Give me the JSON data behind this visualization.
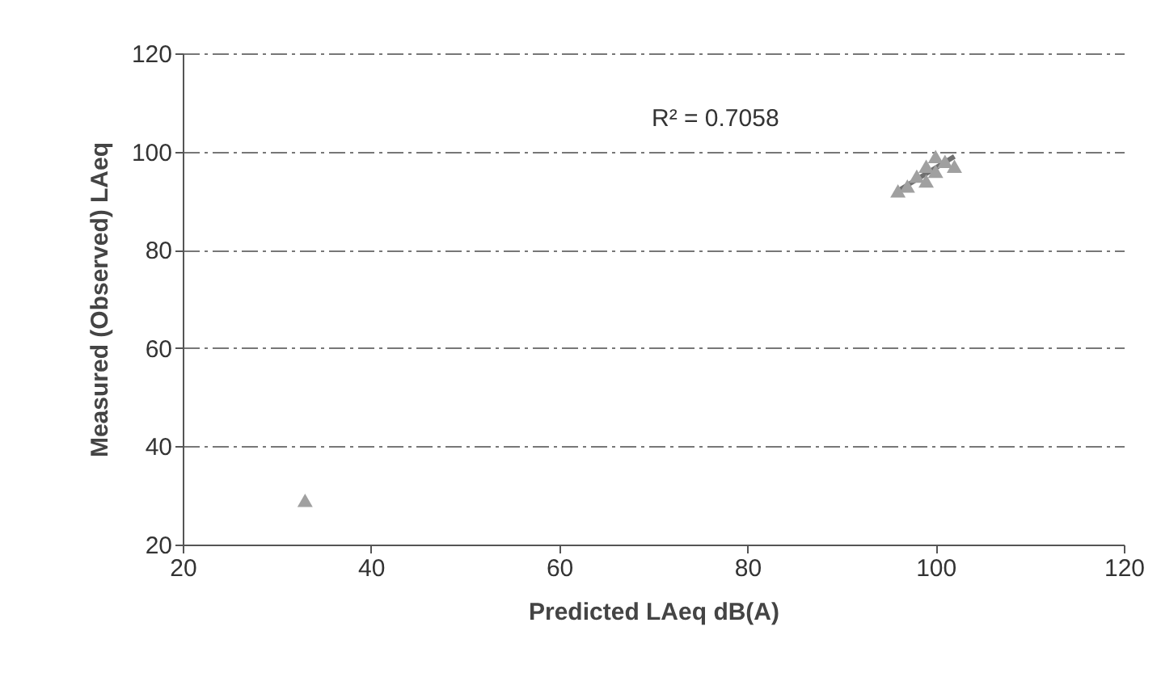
{
  "chart_data": {
    "type": "scatter",
    "xlabel": "Predicted LAeq dB(A)",
    "ylabel": "Measured (Observed) LAeq",
    "annotations": [
      "R² = 0.7058"
    ],
    "series": [
      {
        "type": "line",
        "color": "#707070",
        "x": [
          96,
          102
        ],
        "values": [
          92,
          99
        ]
      },
      {
        "color": "#a0a0a0",
        "marker": "triangle",
        "x": [
          33,
          96,
          97,
          98,
          99,
          99,
          100,
          100,
          101,
          102
        ],
        "values": [
          29,
          92,
          93,
          95,
          94,
          97,
          96,
          99,
          98,
          97
        ]
      }
    ],
    "xlim": [
      20,
      120
    ],
    "ylim": [
      20,
      120
    ],
    "xticks": [
      20,
      40,
      60,
      80,
      100,
      120
    ],
    "yticks": [
      20,
      40,
      60,
      80,
      100,
      120
    ],
    "grid": "y",
    "line_style": "solid"
  }
}
